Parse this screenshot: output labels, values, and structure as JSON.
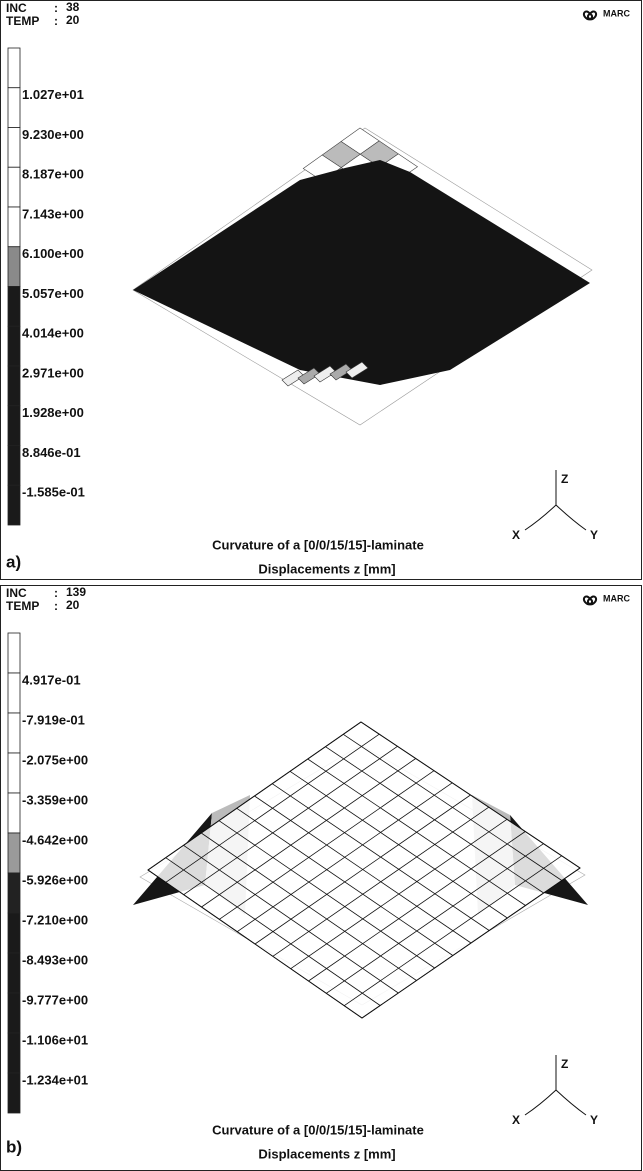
{
  "separator": ":",
  "panels": [
    {
      "inc_label": "INC",
      "inc_value": "38",
      "temp_label": "TEMP",
      "temp_value": "20",
      "logo": "MARC",
      "legend_labels": [
        "1.027e+01",
        "9.230e+00",
        "8.187e+00",
        "7.143e+00",
        "6.100e+00",
        "5.057e+00",
        "4.014e+00",
        "2.971e+00",
        "1.928e+00",
        "8.846e-01",
        "-1.585e-01"
      ],
      "legend_colors": [
        "#ffffff",
        "#ffffff",
        "#ffffff",
        "#ffffff",
        "#ffffff",
        "#8a8a8a",
        "#1a1a1a",
        "#1a1a1a",
        "#1a1a1a",
        "#1a1a1a",
        "#1a1a1a",
        "#1a1a1a"
      ],
      "caption": [
        "Curvature of a [0/0/15/15]-laminate",
        "Displacements z [mm]"
      ],
      "axes": {
        "x": "X",
        "y": "Y",
        "z": "Z"
      },
      "label": "a)"
    },
    {
      "inc_label": "INC",
      "inc_value": "139",
      "temp_label": "TEMP",
      "temp_value": "20",
      "logo": "MARC",
      "legend_labels": [
        "4.917e-01",
        "-7.919e-01",
        "-2.075e+00",
        "-3.359e+00",
        "-4.642e+00",
        "-5.926e+00",
        "-7.210e+00",
        "-8.493e+00",
        "-9.777e+00",
        "-1.106e+01",
        "-1.234e+01"
      ],
      "legend_colors": [
        "#ffffff",
        "#ffffff",
        "#ffffff",
        "#ffffff",
        "#ffffff",
        "#9a9a9a",
        "#222222",
        "#1a1a1a",
        "#1a1a1a",
        "#1a1a1a",
        "#1a1a1a",
        "#1a1a1a"
      ],
      "caption": [
        "Curvature of a [0/0/15/15]-laminate",
        "Displacements z [mm]"
      ],
      "axes": {
        "x": "X",
        "y": "Y",
        "z": "Z"
      },
      "label": "b)"
    }
  ]
}
